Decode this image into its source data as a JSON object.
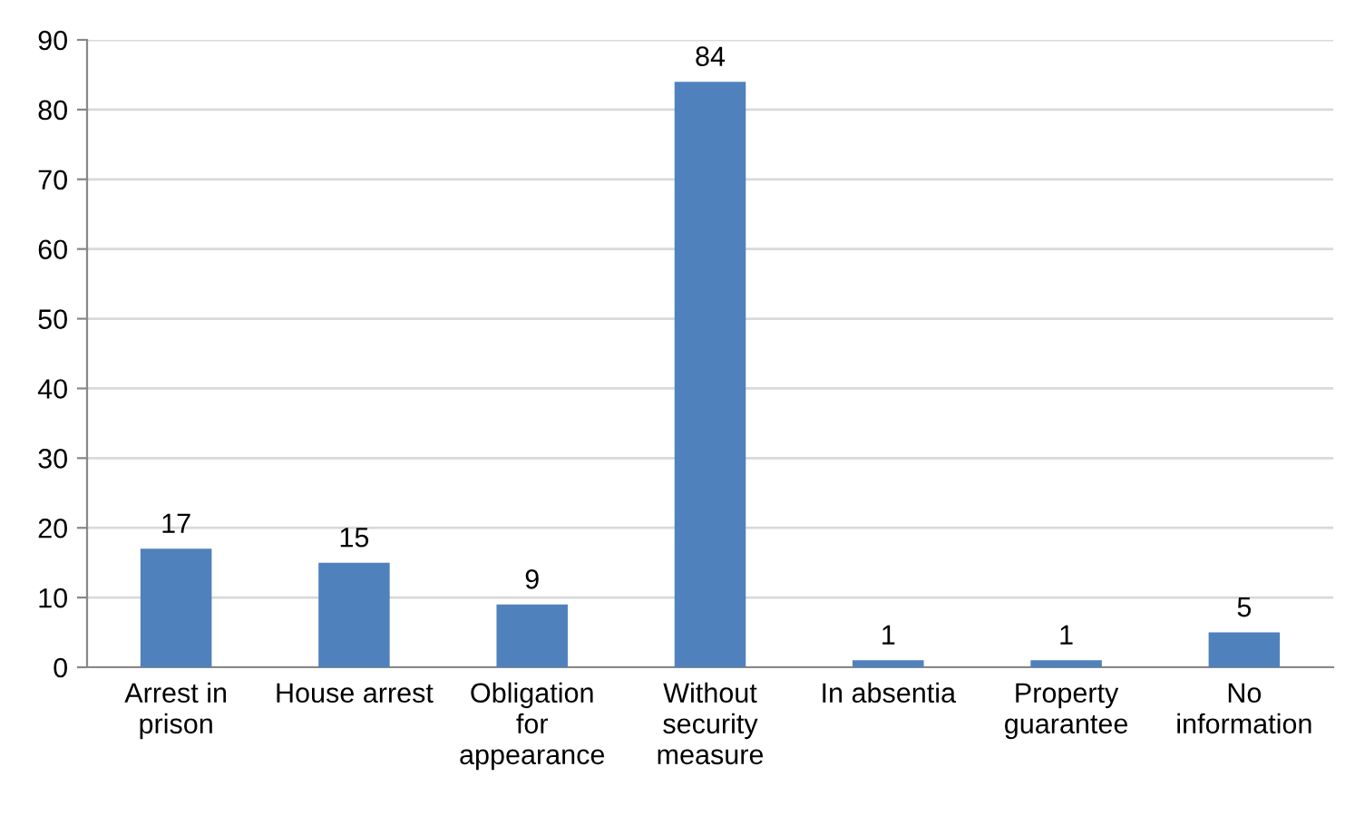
{
  "chart_data": {
    "type": "bar",
    "categories": [
      "Arrest in\nprison",
      "House arrest",
      "Obligation\nfor\nappearance",
      "Without\nsecurity\nmeasure",
      "In absentia",
      "Property\nguarantee",
      "No\ninformation"
    ],
    "values": [
      17,
      15,
      9,
      84,
      1,
      1,
      5
    ],
    "color": "#4f81bd",
    "ylim": [
      0,
      90
    ],
    "yticks": [
      0,
      10,
      20,
      30,
      40,
      50,
      60,
      70,
      80,
      90
    ],
    "grid": "y",
    "data_labels": true
  }
}
